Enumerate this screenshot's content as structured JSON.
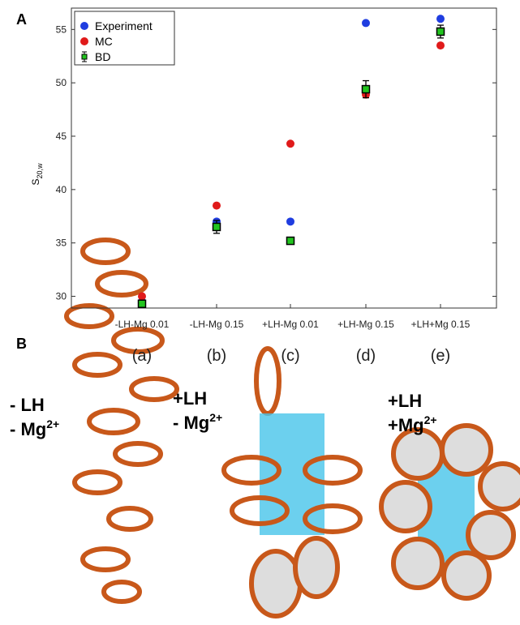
{
  "panel_labels": [
    "A",
    "B"
  ],
  "chart_data": {
    "type": "scatter",
    "ylabel": "S",
    "ylabel_sub": "20,w",
    "categories": [
      "-LH-Mg 0.01",
      "-LH-Mg 0.15",
      "+LH-Mg 0.01",
      "+LH-Mg 0.15",
      "+LH+Mg 0.15"
    ],
    "category_letters": [
      "(a)",
      "(b)",
      "(c)",
      "(d)",
      "(e)"
    ],
    "series": [
      {
        "name": "Experiment",
        "color": "#1f3de0",
        "values": [
          29.5,
          37.0,
          37.0,
          55.6,
          56.0
        ]
      },
      {
        "name": "MC",
        "color": "#e01a1a",
        "values": [
          30.0,
          38.5,
          44.3,
          48.9,
          53.5
        ]
      },
      {
        "name": "BD",
        "color": "#22c41f",
        "values": [
          29.3,
          36.5,
          35.2,
          49.4,
          54.8
        ],
        "errors": [
          0.2,
          0.6,
          0.2,
          0.8,
          0.6
        ]
      }
    ],
    "ylim": [
      28.9,
      57
    ],
    "yticks": [
      30,
      35,
      40,
      45,
      50,
      55
    ],
    "legend": "upper left",
    "grid": false
  },
  "structures": [
    {
      "lines": [
        {
          "text": "- LH"
        },
        {
          "text": "- Mg",
          "sup": "2+"
        }
      ]
    },
    {
      "lines": [
        {
          "text": "+LH"
        },
        {
          "text": "- Mg",
          "sup": "2+"
        }
      ]
    },
    {
      "lines": [
        {
          "text": "+LH"
        },
        {
          "text": "+Mg",
          "sup": "2+"
        }
      ]
    }
  ]
}
